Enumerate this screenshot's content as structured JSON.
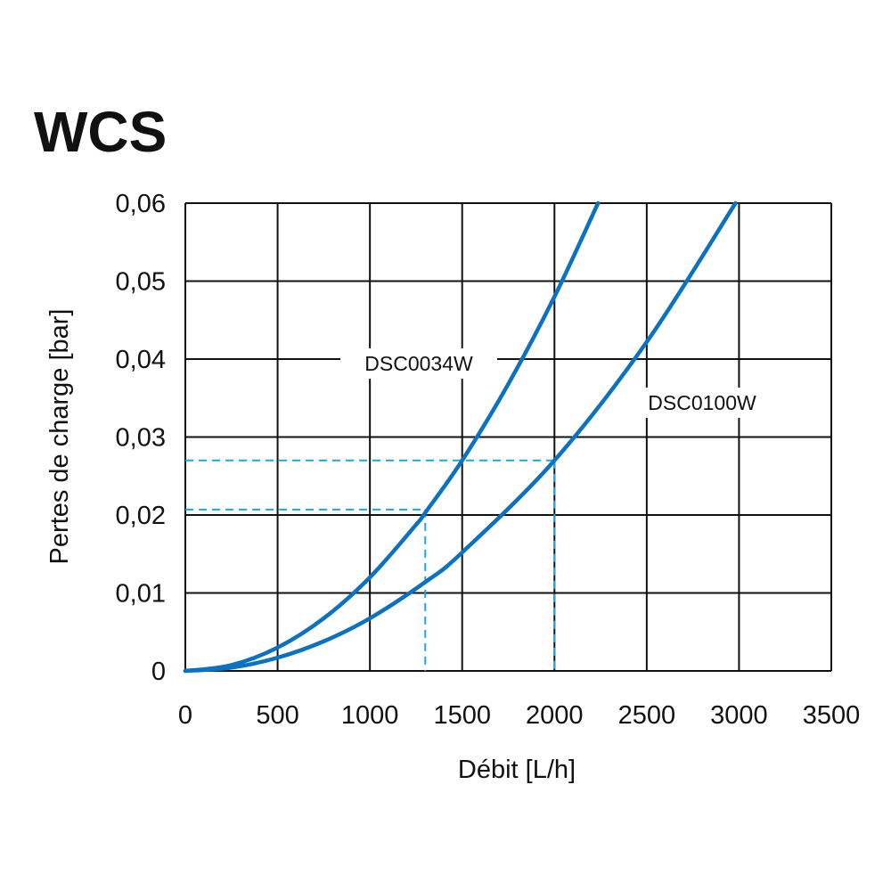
{
  "chart_data": {
    "type": "line",
    "title": "WCS",
    "xlabel": "Débit [L/h]",
    "ylabel": "Pertes de charge [bar]",
    "xlim": [
      0,
      3500
    ],
    "ylim": [
      0,
      0.06
    ],
    "xticks": [
      0,
      500,
      1000,
      1500,
      2000,
      2500,
      3000,
      3500
    ],
    "xtick_labels": [
      "0",
      "500",
      "1000",
      "1500",
      "2000",
      "2500",
      "3000",
      "3500"
    ],
    "yticks": [
      0,
      0.01,
      0.02,
      0.03,
      0.04,
      0.05,
      0.06
    ],
    "ytick_labels": [
      "0",
      "0,01",
      "0,02",
      "0,03",
      "0,04",
      "0,05",
      "0,06"
    ],
    "grid": true,
    "series": [
      {
        "name": "DSC0034W",
        "color": "#0a72c0",
        "x": [
          0,
          250,
          500,
          750,
          1000,
          1250,
          1300,
          1500,
          1750,
          2000,
          2236
        ],
        "y": [
          0,
          0.00075,
          0.003,
          0.00675,
          0.012,
          0.01875,
          0.0203,
          0.027,
          0.0368,
          0.048,
          0.06
        ]
      },
      {
        "name": "DSC0100W",
        "color": "#0a72c0",
        "x": [
          0,
          250,
          500,
          750,
          1000,
          1300,
          1500,
          2000,
          2500,
          2981
        ],
        "y": [
          0,
          0.00042,
          0.0017,
          0.0038,
          0.00675,
          0.0114,
          0.0152,
          0.027,
          0.0422,
          0.06
        ]
      }
    ],
    "reference_lines": [
      {
        "x": 1300,
        "y": 0.0207,
        "color": "#1aa6e8",
        "style": "dashed"
      },
      {
        "x": 2000,
        "y": 0.027,
        "color": "#1aa6e8",
        "style": "dashed"
      }
    ]
  }
}
